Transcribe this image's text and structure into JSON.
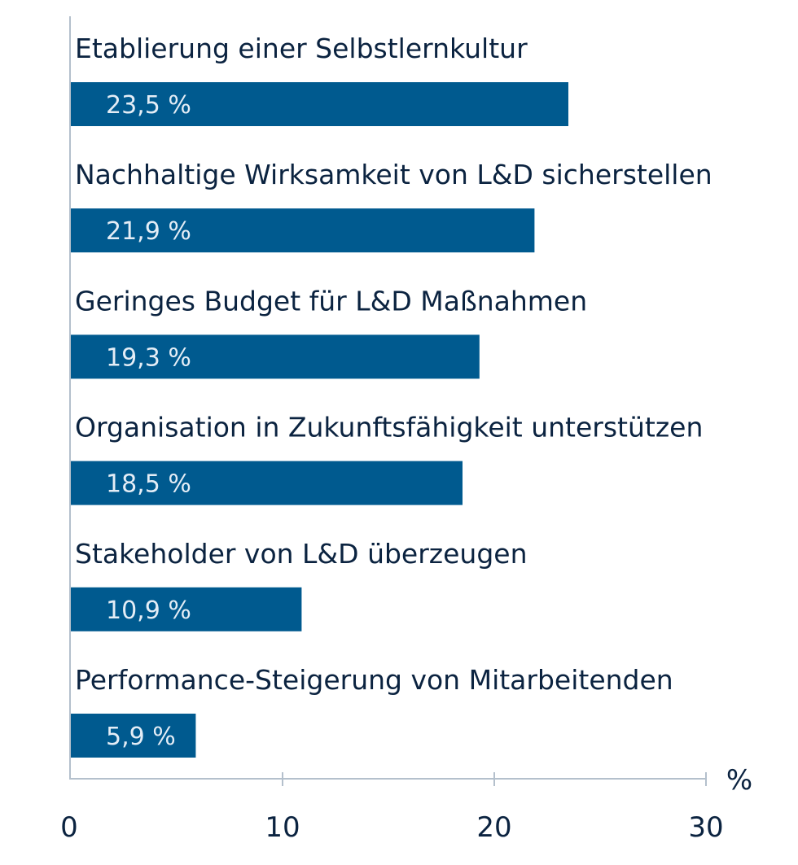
{
  "chart_data": {
    "type": "bar",
    "orientation": "horizontal",
    "categories": [
      "Etablierung einer Selbstlernkultur",
      "Nachhaltige Wirksamkeit von L&D sicherstellen",
      "Geringes Budget für L&D Maßnahmen",
      "Organisation in Zukunftsfähigkeit unterstützen",
      "Stakeholder von L&D überzeugen",
      "Performance-Steigerung von Mitarbeitenden"
    ],
    "values": [
      23.5,
      21.9,
      19.3,
      18.5,
      10.9,
      5.9
    ],
    "value_labels": [
      "23,5 %",
      "21,9 %",
      "19,3 %",
      "18,5 %",
      "10,9 %",
      "5,9 %"
    ],
    "xlabel": "%",
    "xlim": [
      0,
      30
    ],
    "xticks": [
      "0",
      "10",
      "20",
      "30"
    ],
    "grid": false,
    "colors": {
      "bar": "#005a8f",
      "axis": "#b4c0cc",
      "text": "#0b2340"
    }
  }
}
